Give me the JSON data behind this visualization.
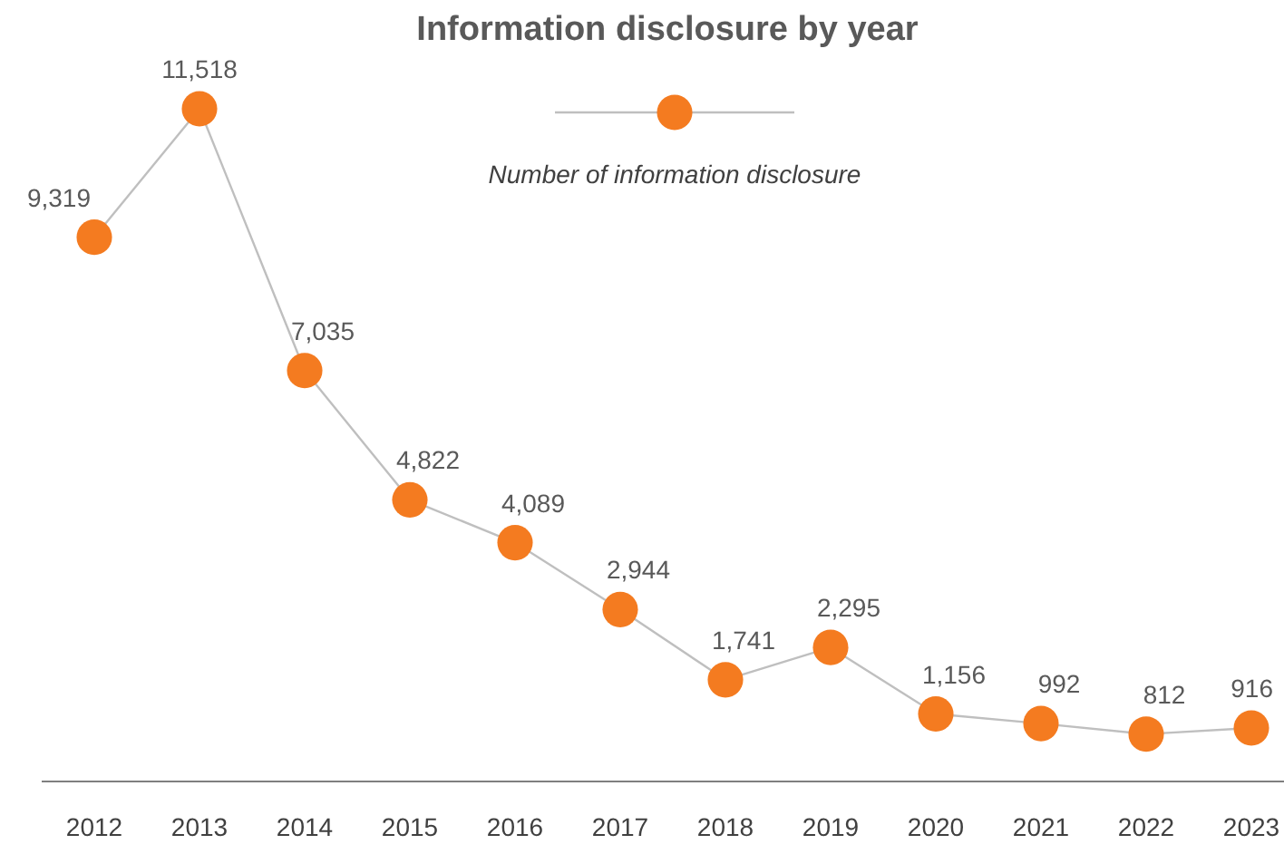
{
  "chart_data": {
    "type": "line",
    "title": "Information disclosure by year",
    "categories": [
      "2012",
      "2013",
      "2014",
      "2015",
      "2016",
      "2017",
      "2018",
      "2019",
      "2020",
      "2021",
      "2022",
      "2023"
    ],
    "series": [
      {
        "name": "Number of information disclosure",
        "color": "#f47b20",
        "values": [
          9319,
          11518,
          7035,
          4822,
          4089,
          2944,
          1741,
          2295,
          1156,
          992,
          812,
          916
        ],
        "value_labels": [
          "9,319",
          "11,518",
          "7,035",
          "4,822",
          "4,089",
          "2,944",
          "1,741",
          "2,295",
          "1,156",
          "992",
          "812",
          "916"
        ]
      }
    ],
    "marker": "circle",
    "legend": "top",
    "grid": false
  }
}
